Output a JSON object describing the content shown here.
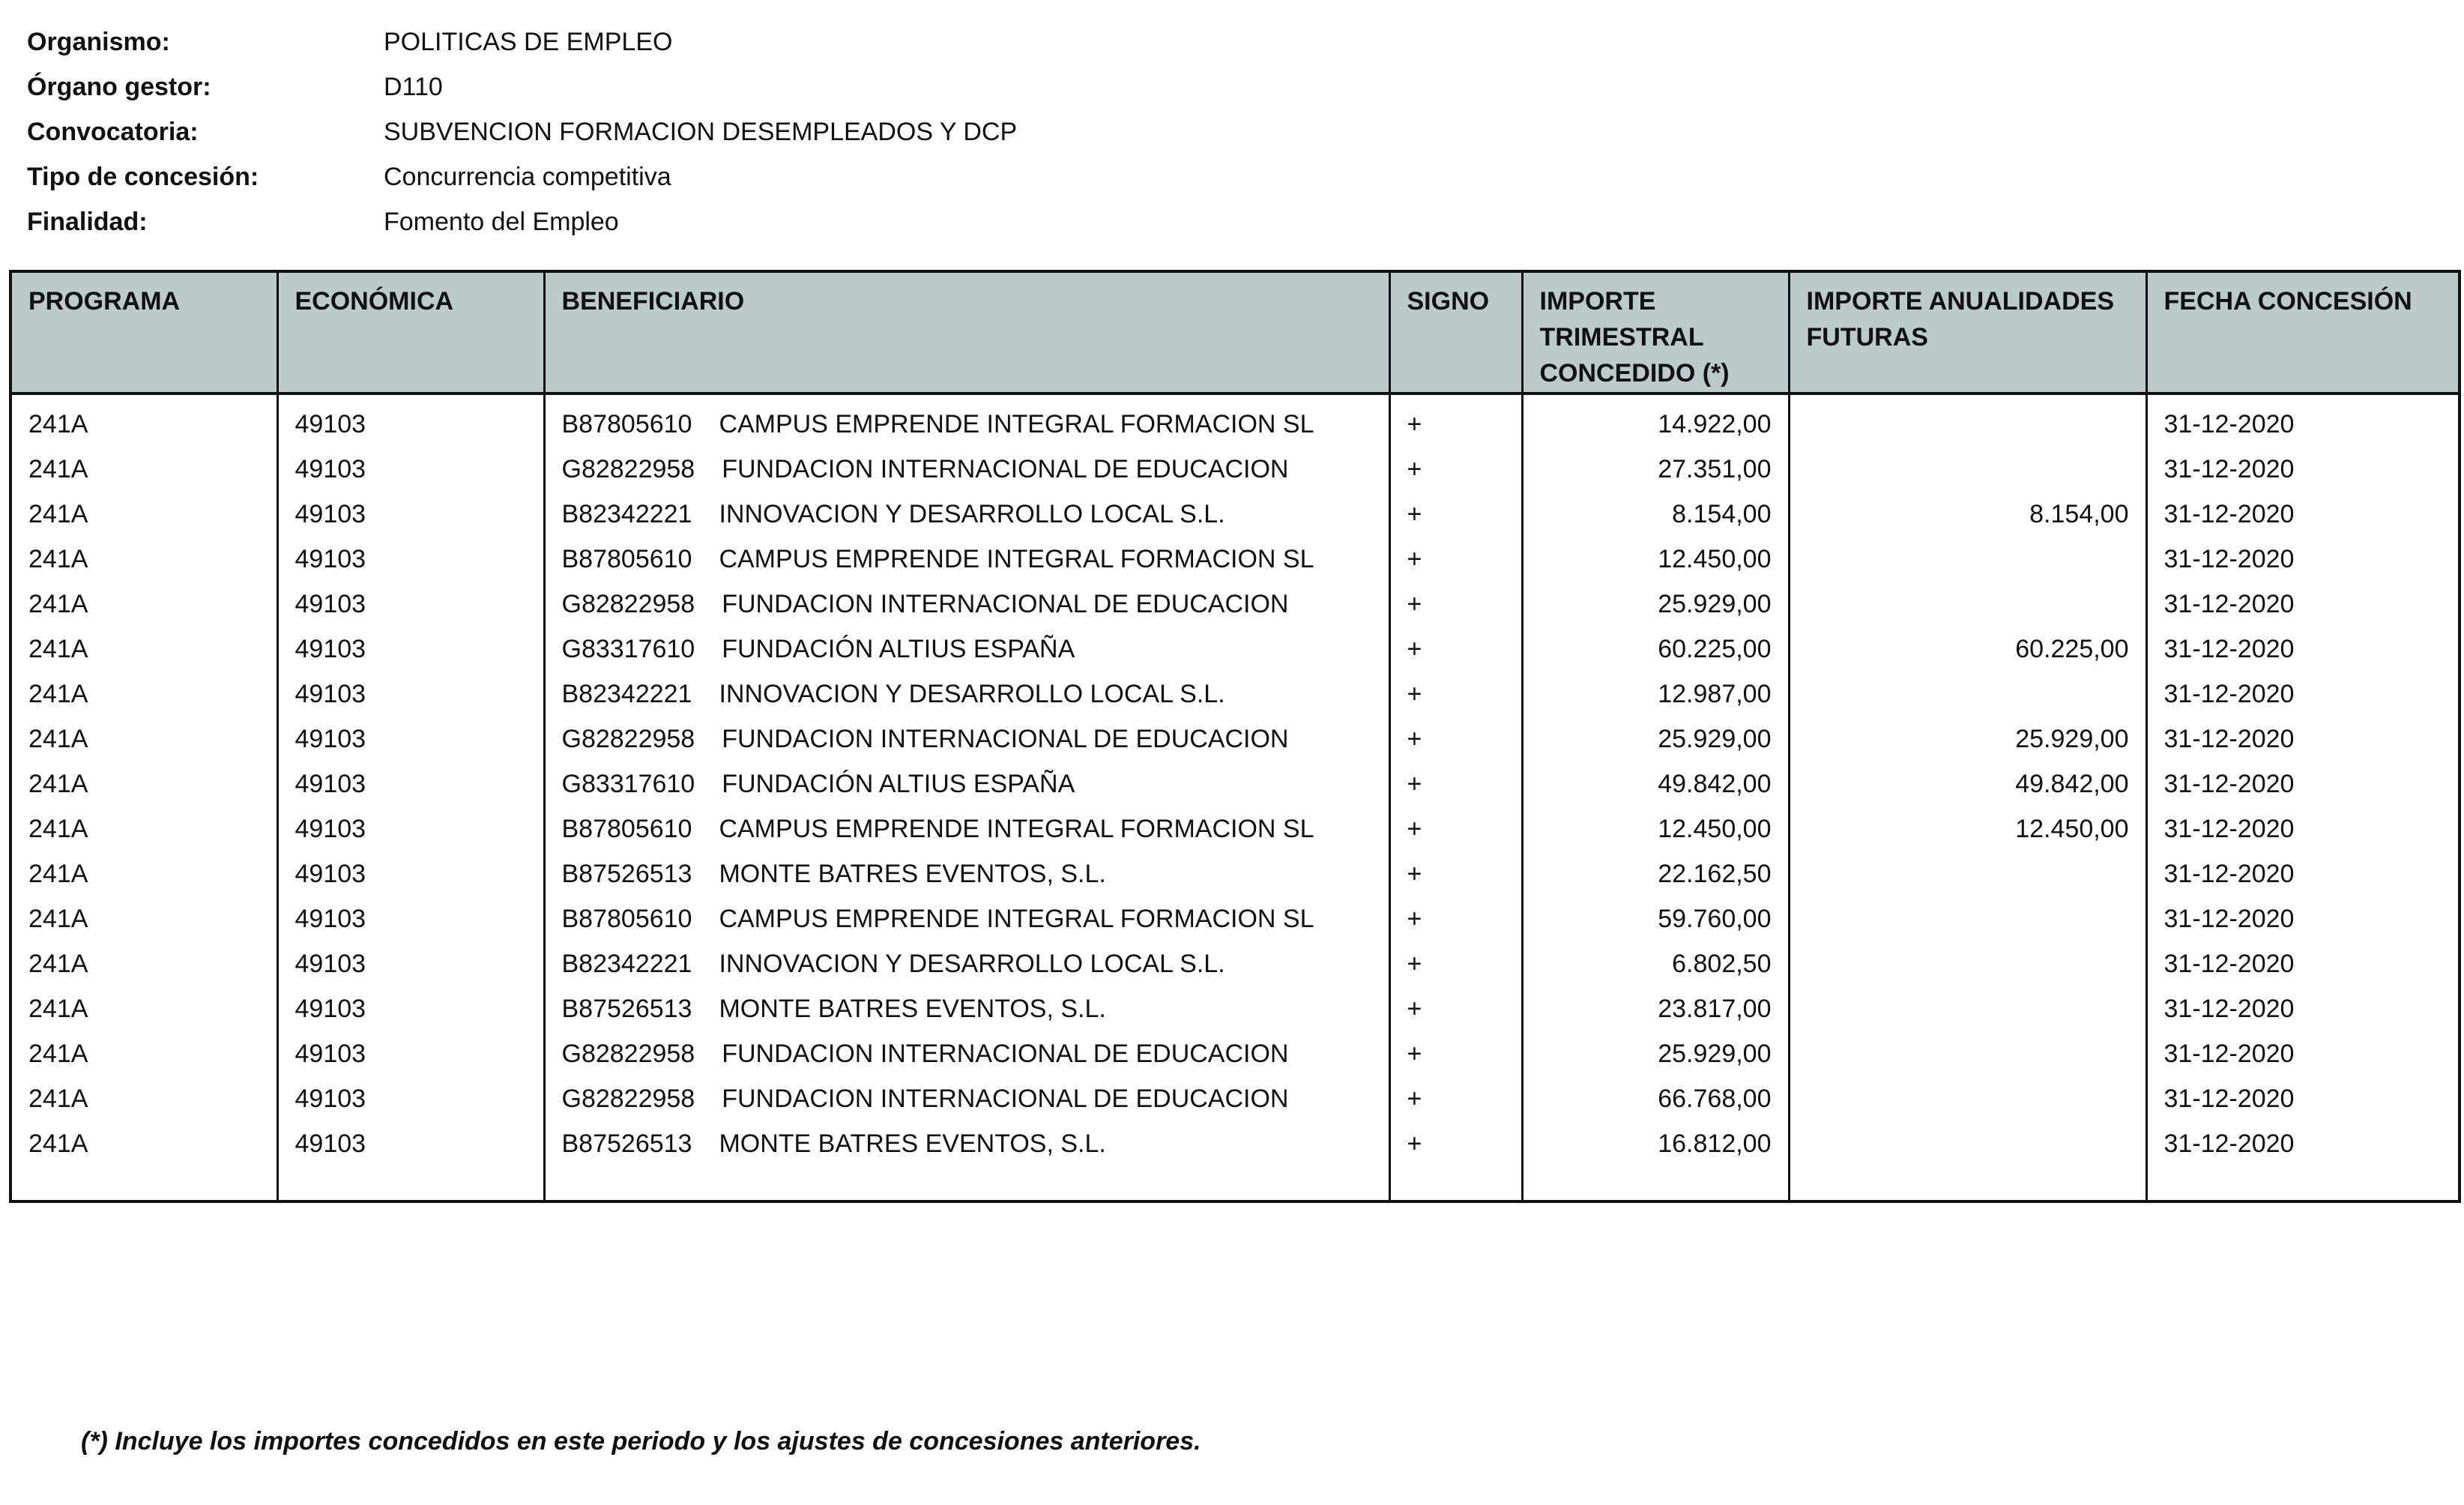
{
  "info": [
    {
      "label": "Organismo:",
      "value": "POLITICAS DE EMPLEO"
    },
    {
      "label": "Órgano gestor:",
      "value": "D110"
    },
    {
      "label": "Convocatoria:",
      "value": "SUBVENCION FORMACION DESEMPLEADOS Y DCP"
    },
    {
      "label": "Tipo de concesión:",
      "value": "Concurrencia competitiva"
    },
    {
      "label": "Finalidad:",
      "value": "Fomento del Empleo"
    }
  ],
  "table": {
    "header_bg": "#bccbca",
    "columns": [
      "PROGRAMA",
      "ECONÓMICA",
      "BENEFICIARIO",
      "SIGNO",
      "IMPORTE TRIMESTRAL CONCEDIDO (*)",
      "IMPORTE ANUALIDADES FUTURAS",
      "FECHA CONCESIÓN"
    ],
    "rows": [
      [
        "241A",
        "49103",
        "B87805610",
        "CAMPUS EMPRENDE INTEGRAL FORMACION SL",
        "+",
        "14.922,00",
        "",
        "31-12-2020"
      ],
      [
        "241A",
        "49103",
        "G82822958",
        "FUNDACION INTERNACIONAL DE EDUCACION",
        "+",
        "27.351,00",
        "",
        "31-12-2020"
      ],
      [
        "241A",
        "49103",
        "B82342221",
        "INNOVACION Y DESARROLLO LOCAL S.L.",
        "+",
        "8.154,00",
        "8.154,00",
        "31-12-2020"
      ],
      [
        "241A",
        "49103",
        "B87805610",
        "CAMPUS EMPRENDE INTEGRAL FORMACION SL",
        "+",
        "12.450,00",
        "",
        "31-12-2020"
      ],
      [
        "241A",
        "49103",
        "G82822958",
        "FUNDACION INTERNACIONAL DE EDUCACION",
        "+",
        "25.929,00",
        "",
        "31-12-2020"
      ],
      [
        "241A",
        "49103",
        "G83317610",
        "FUNDACIÓN ALTIUS ESPAÑA",
        "+",
        "60.225,00",
        "60.225,00",
        "31-12-2020"
      ],
      [
        "241A",
        "49103",
        "B82342221",
        "INNOVACION Y DESARROLLO LOCAL S.L.",
        "+",
        "12.987,00",
        "",
        "31-12-2020"
      ],
      [
        "241A",
        "49103",
        "G82822958",
        "FUNDACION INTERNACIONAL DE EDUCACION",
        "+",
        "25.929,00",
        "25.929,00",
        "31-12-2020"
      ],
      [
        "241A",
        "49103",
        "G83317610",
        "FUNDACIÓN ALTIUS ESPAÑA",
        "+",
        "49.842,00",
        "49.842,00",
        "31-12-2020"
      ],
      [
        "241A",
        "49103",
        "B87805610",
        "CAMPUS EMPRENDE INTEGRAL FORMACION SL",
        "+",
        "12.450,00",
        "12.450,00",
        "31-12-2020"
      ],
      [
        "241A",
        "49103",
        "B87526513",
        "MONTE BATRES EVENTOS, S.L.",
        "+",
        "22.162,50",
        "",
        "31-12-2020"
      ],
      [
        "241A",
        "49103",
        "B87805610",
        "CAMPUS EMPRENDE INTEGRAL FORMACION SL",
        "+",
        "59.760,00",
        "",
        "31-12-2020"
      ],
      [
        "241A",
        "49103",
        "B82342221",
        "INNOVACION Y DESARROLLO LOCAL S.L.",
        "+",
        "6.802,50",
        "",
        "31-12-2020"
      ],
      [
        "241A",
        "49103",
        "B87526513",
        "MONTE BATRES EVENTOS, S.L.",
        "+",
        "23.817,00",
        "",
        "31-12-2020"
      ],
      [
        "241A",
        "49103",
        "G82822958",
        "FUNDACION INTERNACIONAL DE EDUCACION",
        "+",
        "25.929,00",
        "",
        "31-12-2020"
      ],
      [
        "241A",
        "49103",
        "G82822958",
        "FUNDACION INTERNACIONAL DE EDUCACION",
        "+",
        "66.768,00",
        "",
        "31-12-2020"
      ],
      [
        "241A",
        "49103",
        "B87526513",
        "MONTE BATRES EVENTOS, S.L.",
        "+",
        "16.812,00",
        "",
        "31-12-2020"
      ]
    ]
  },
  "footnote": "(*) Incluye los importes concedidos en este periodo y los ajustes de concesiones anteriores."
}
